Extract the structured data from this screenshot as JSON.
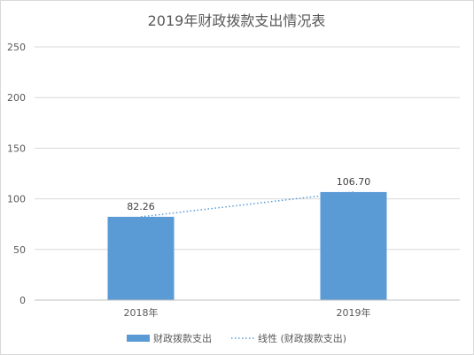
{
  "chart_data": {
    "type": "bar",
    "title": "2019年财政拨款支出情况表",
    "categories": [
      "2018年",
      "2019年"
    ],
    "series": [
      {
        "name": "财政拨款支出",
        "values": [
          82.26,
          106.7
        ],
        "labels": [
          "82.26",
          "106.70"
        ],
        "color": "#5b9bd5"
      }
    ],
    "trendline": {
      "name": "线性 (财政拨款支出)",
      "type": "linear",
      "color": "#5b9bd5",
      "style": "dotted"
    },
    "ylim": [
      0,
      250
    ],
    "yticks": [
      0,
      50,
      100,
      150,
      200,
      250
    ],
    "grid": true,
    "legend": "bottom",
    "xlabel": "",
    "ylabel": ""
  }
}
